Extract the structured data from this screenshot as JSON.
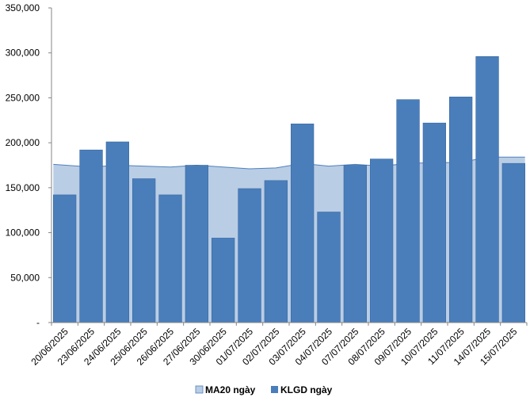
{
  "chart_data": {
    "type": "bar",
    "categories": [
      "20/06/2025",
      "23/06/2025",
      "24/06/2025",
      "25/06/2025",
      "26/06/2025",
      "27/06/2025",
      "30/06/2025",
      "01/07/2025",
      "02/07/2025",
      "03/07/2025",
      "04/07/2025",
      "07/07/2025",
      "08/07/2025",
      "09/07/2025",
      "10/07/2025",
      "11/07/2025",
      "14/07/2025",
      "15/07/2025"
    ],
    "series": [
      {
        "name": "MA20 ngày",
        "kind": "area",
        "color": "#b9cde5",
        "stroke": "#4f81bd",
        "values": [
          176000,
          173000,
          175000,
          174000,
          173000,
          175000,
          173000,
          171000,
          172000,
          177000,
          174000,
          176000,
          174000,
          177000,
          178000,
          178000,
          184000,
          184000
        ]
      },
      {
        "name": "KLGD ngày",
        "kind": "bar",
        "color": "#4a7ebb",
        "values": [
          142000,
          192000,
          201000,
          160000,
          142000,
          175000,
          94000,
          149000,
          158000,
          221000,
          123000,
          175000,
          182000,
          248000,
          222000,
          251000,
          296000,
          177000
        ]
      }
    ],
    "y_ticks": [
      "-",
      "50,000",
      "100,000",
      "150,000",
      "200,000",
      "250,000",
      "300,000",
      "350,000"
    ],
    "ylim": [
      0,
      350000
    ],
    "grid": false,
    "legend_position": "bottom"
  }
}
